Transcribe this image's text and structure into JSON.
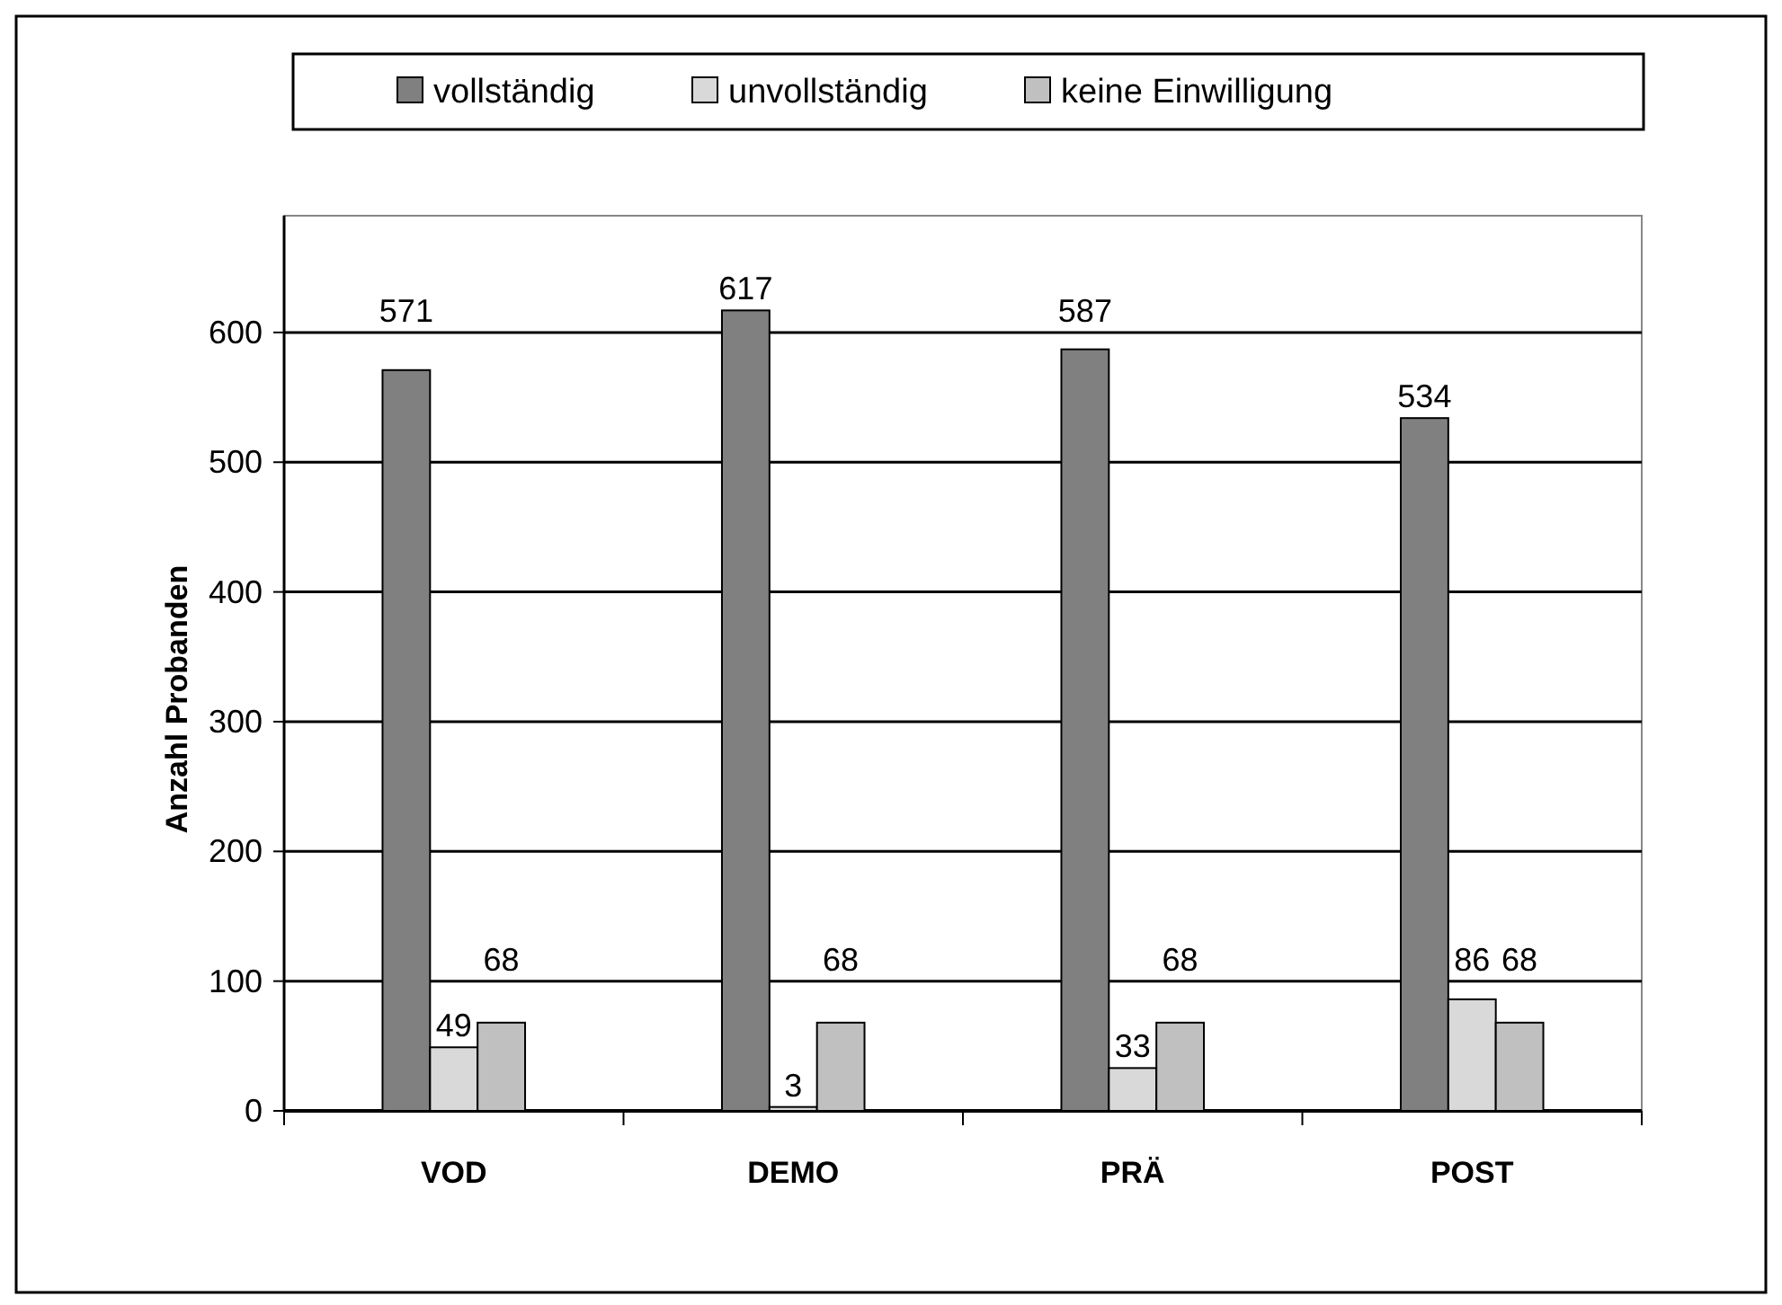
{
  "chart_data": {
    "type": "bar",
    "ylabel": "Anzahl Probanden",
    "categories": [
      "VOD",
      "DEMO",
      "PRÄ",
      "POST"
    ],
    "series": [
      {
        "name": "vollständig",
        "color": "#808080",
        "values": [
          571,
          617,
          587,
          534
        ]
      },
      {
        "name": "unvollständig",
        "color": "#d9d9d9",
        "values": [
          49,
          3,
          33,
          86
        ]
      },
      {
        "name": "keine Einwilligung",
        "color": "#c0c0c0",
        "values": [
          68,
          68,
          68,
          68
        ]
      }
    ],
    "ylim": [
      0,
      690
    ],
    "yticks": [
      0,
      100,
      200,
      300,
      400,
      500,
      600
    ],
    "grid": "y",
    "legend": "top",
    "data_labels": true
  }
}
